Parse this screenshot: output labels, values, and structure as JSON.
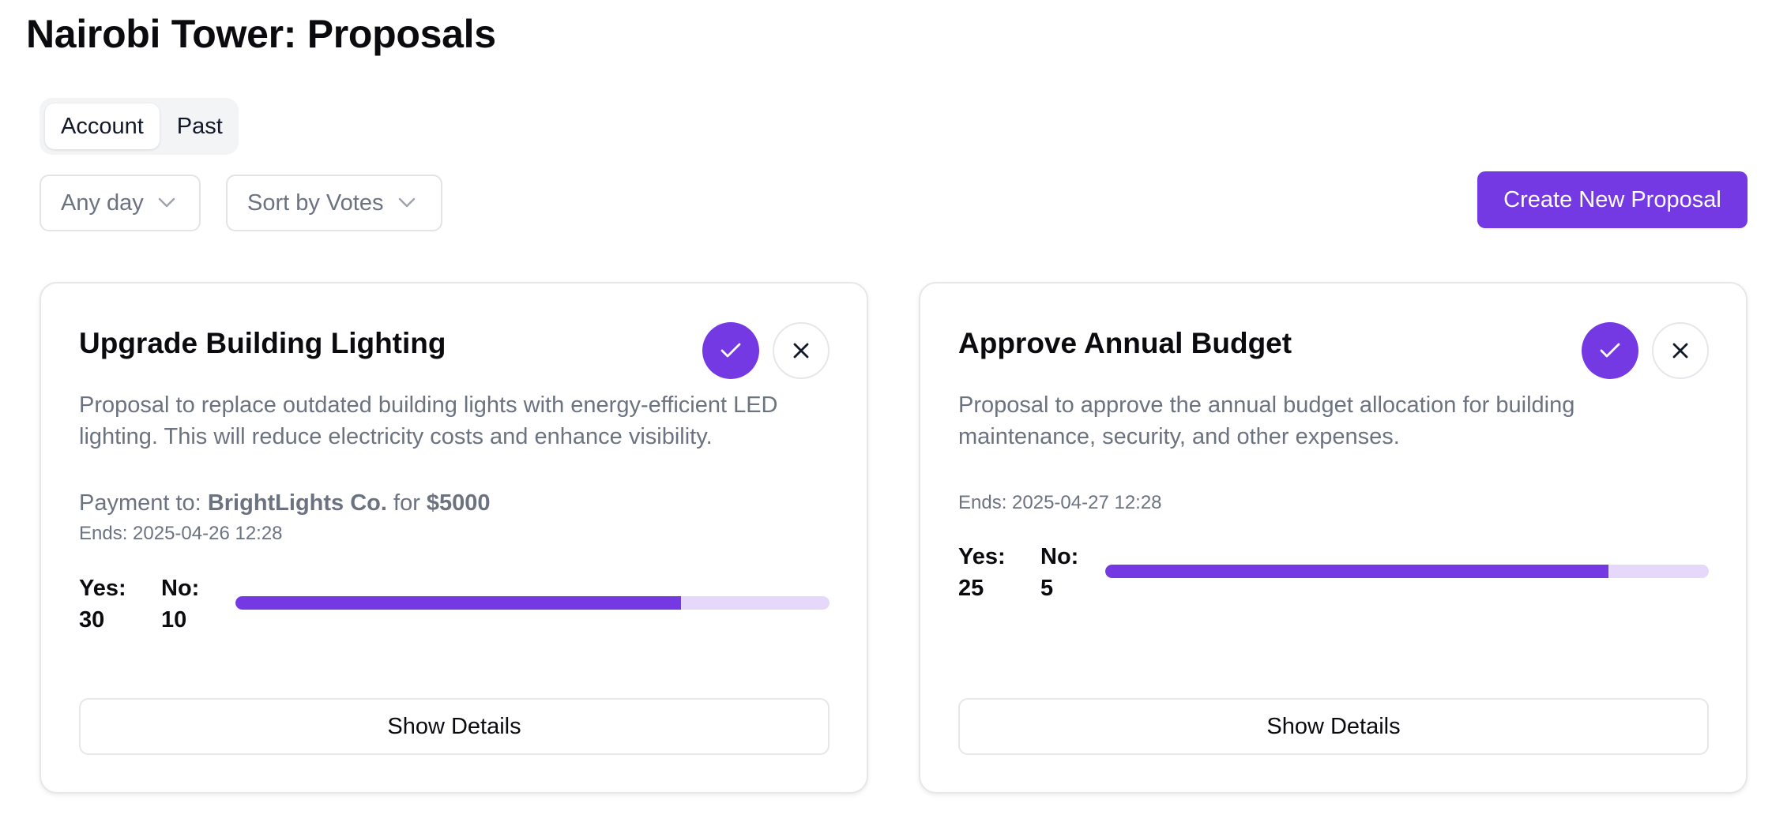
{
  "page": {
    "title": "Nairobi Tower: Proposals"
  },
  "tabs": [
    {
      "label": "Account",
      "active": true
    },
    {
      "label": "Past",
      "active": false
    }
  ],
  "filters": {
    "day": "Any day",
    "sort": "Sort by Votes"
  },
  "actions": {
    "create_label": "Create New Proposal"
  },
  "colors": {
    "accent": "#7439e2",
    "bar_track": "#e5d8fb",
    "muted_text": "#6b7280"
  },
  "proposals": [
    {
      "title": "Upgrade Building Lighting",
      "description": "Proposal to replace outdated building lights with energy-efficient LED lighting. This will reduce electricity costs and enhance visibility.",
      "payment_prefix": "Payment to: ",
      "payee": "BrightLights Co.",
      "payment_mid": " for ",
      "amount": "$5000",
      "ends": "Ends: 2025-04-26 12:28",
      "yes_label": "Yes:",
      "yes_count": "30",
      "no_label": "No:",
      "no_count": "10",
      "yes_fraction": 0.75,
      "details_label": "Show Details"
    },
    {
      "title": "Approve Annual Budget",
      "description": "Proposal to approve the annual budget allocation for building maintenance, security, and other expenses.",
      "ends": "Ends: 2025-04-27 12:28",
      "yes_label": "Yes:",
      "yes_count": "25",
      "no_label": "No:",
      "no_count": "5",
      "yes_fraction": 0.8333,
      "details_label": "Show Details"
    }
  ]
}
